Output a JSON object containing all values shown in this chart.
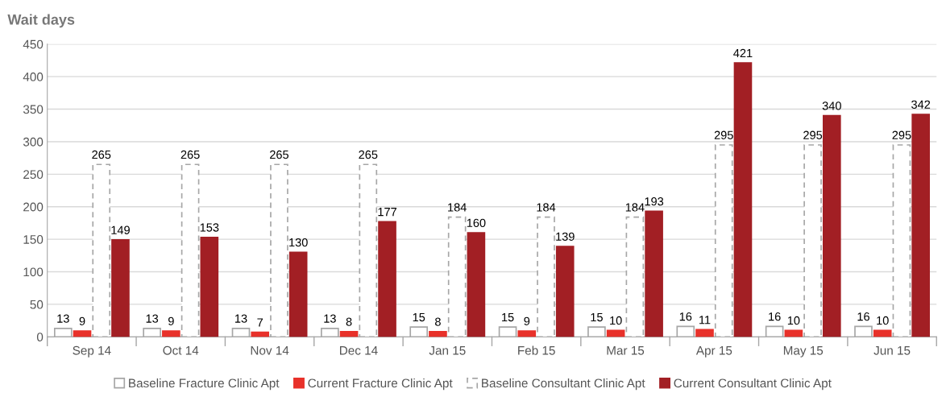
{
  "chart_data": {
    "type": "bar",
    "title": "Wait days",
    "categories": [
      "Sep 14",
      "Oct 14",
      "Nov 14",
      "Dec 14",
      "Jan 15",
      "Feb 15",
      "Mar 15",
      "Apr 15",
      "May 15",
      "Jun 15"
    ],
    "series": [
      {
        "name": "Baseline Fracture Clinic Apt",
        "color": "#ffffff",
        "values": [
          13,
          13,
          13,
          13,
          15,
          15,
          15,
          16,
          16,
          16
        ]
      },
      {
        "name": "Current Fracture Clinic Apt",
        "color": "#e8312a",
        "values": [
          9,
          9,
          7,
          8,
          8,
          9,
          10,
          11,
          10,
          10
        ]
      },
      {
        "name": "Baseline Consultant Clinic Apt",
        "color": "#ffffff",
        "line_style": "dashed",
        "values": [
          265,
          265,
          265,
          265,
          184,
          184,
          184,
          295,
          295,
          295
        ]
      },
      {
        "name": "Current Consultant Clinic Apt",
        "color": "#a21f24",
        "values": [
          149,
          153,
          130,
          177,
          160,
          139,
          193,
          421,
          340,
          342
        ]
      }
    ],
    "ylim": [
      0,
      450
    ],
    "yticks": [
      0,
      50,
      100,
      150,
      200,
      250,
      300,
      350,
      400,
      450
    ],
    "grid": "y",
    "legend": "bottom",
    "data_labels": true
  }
}
